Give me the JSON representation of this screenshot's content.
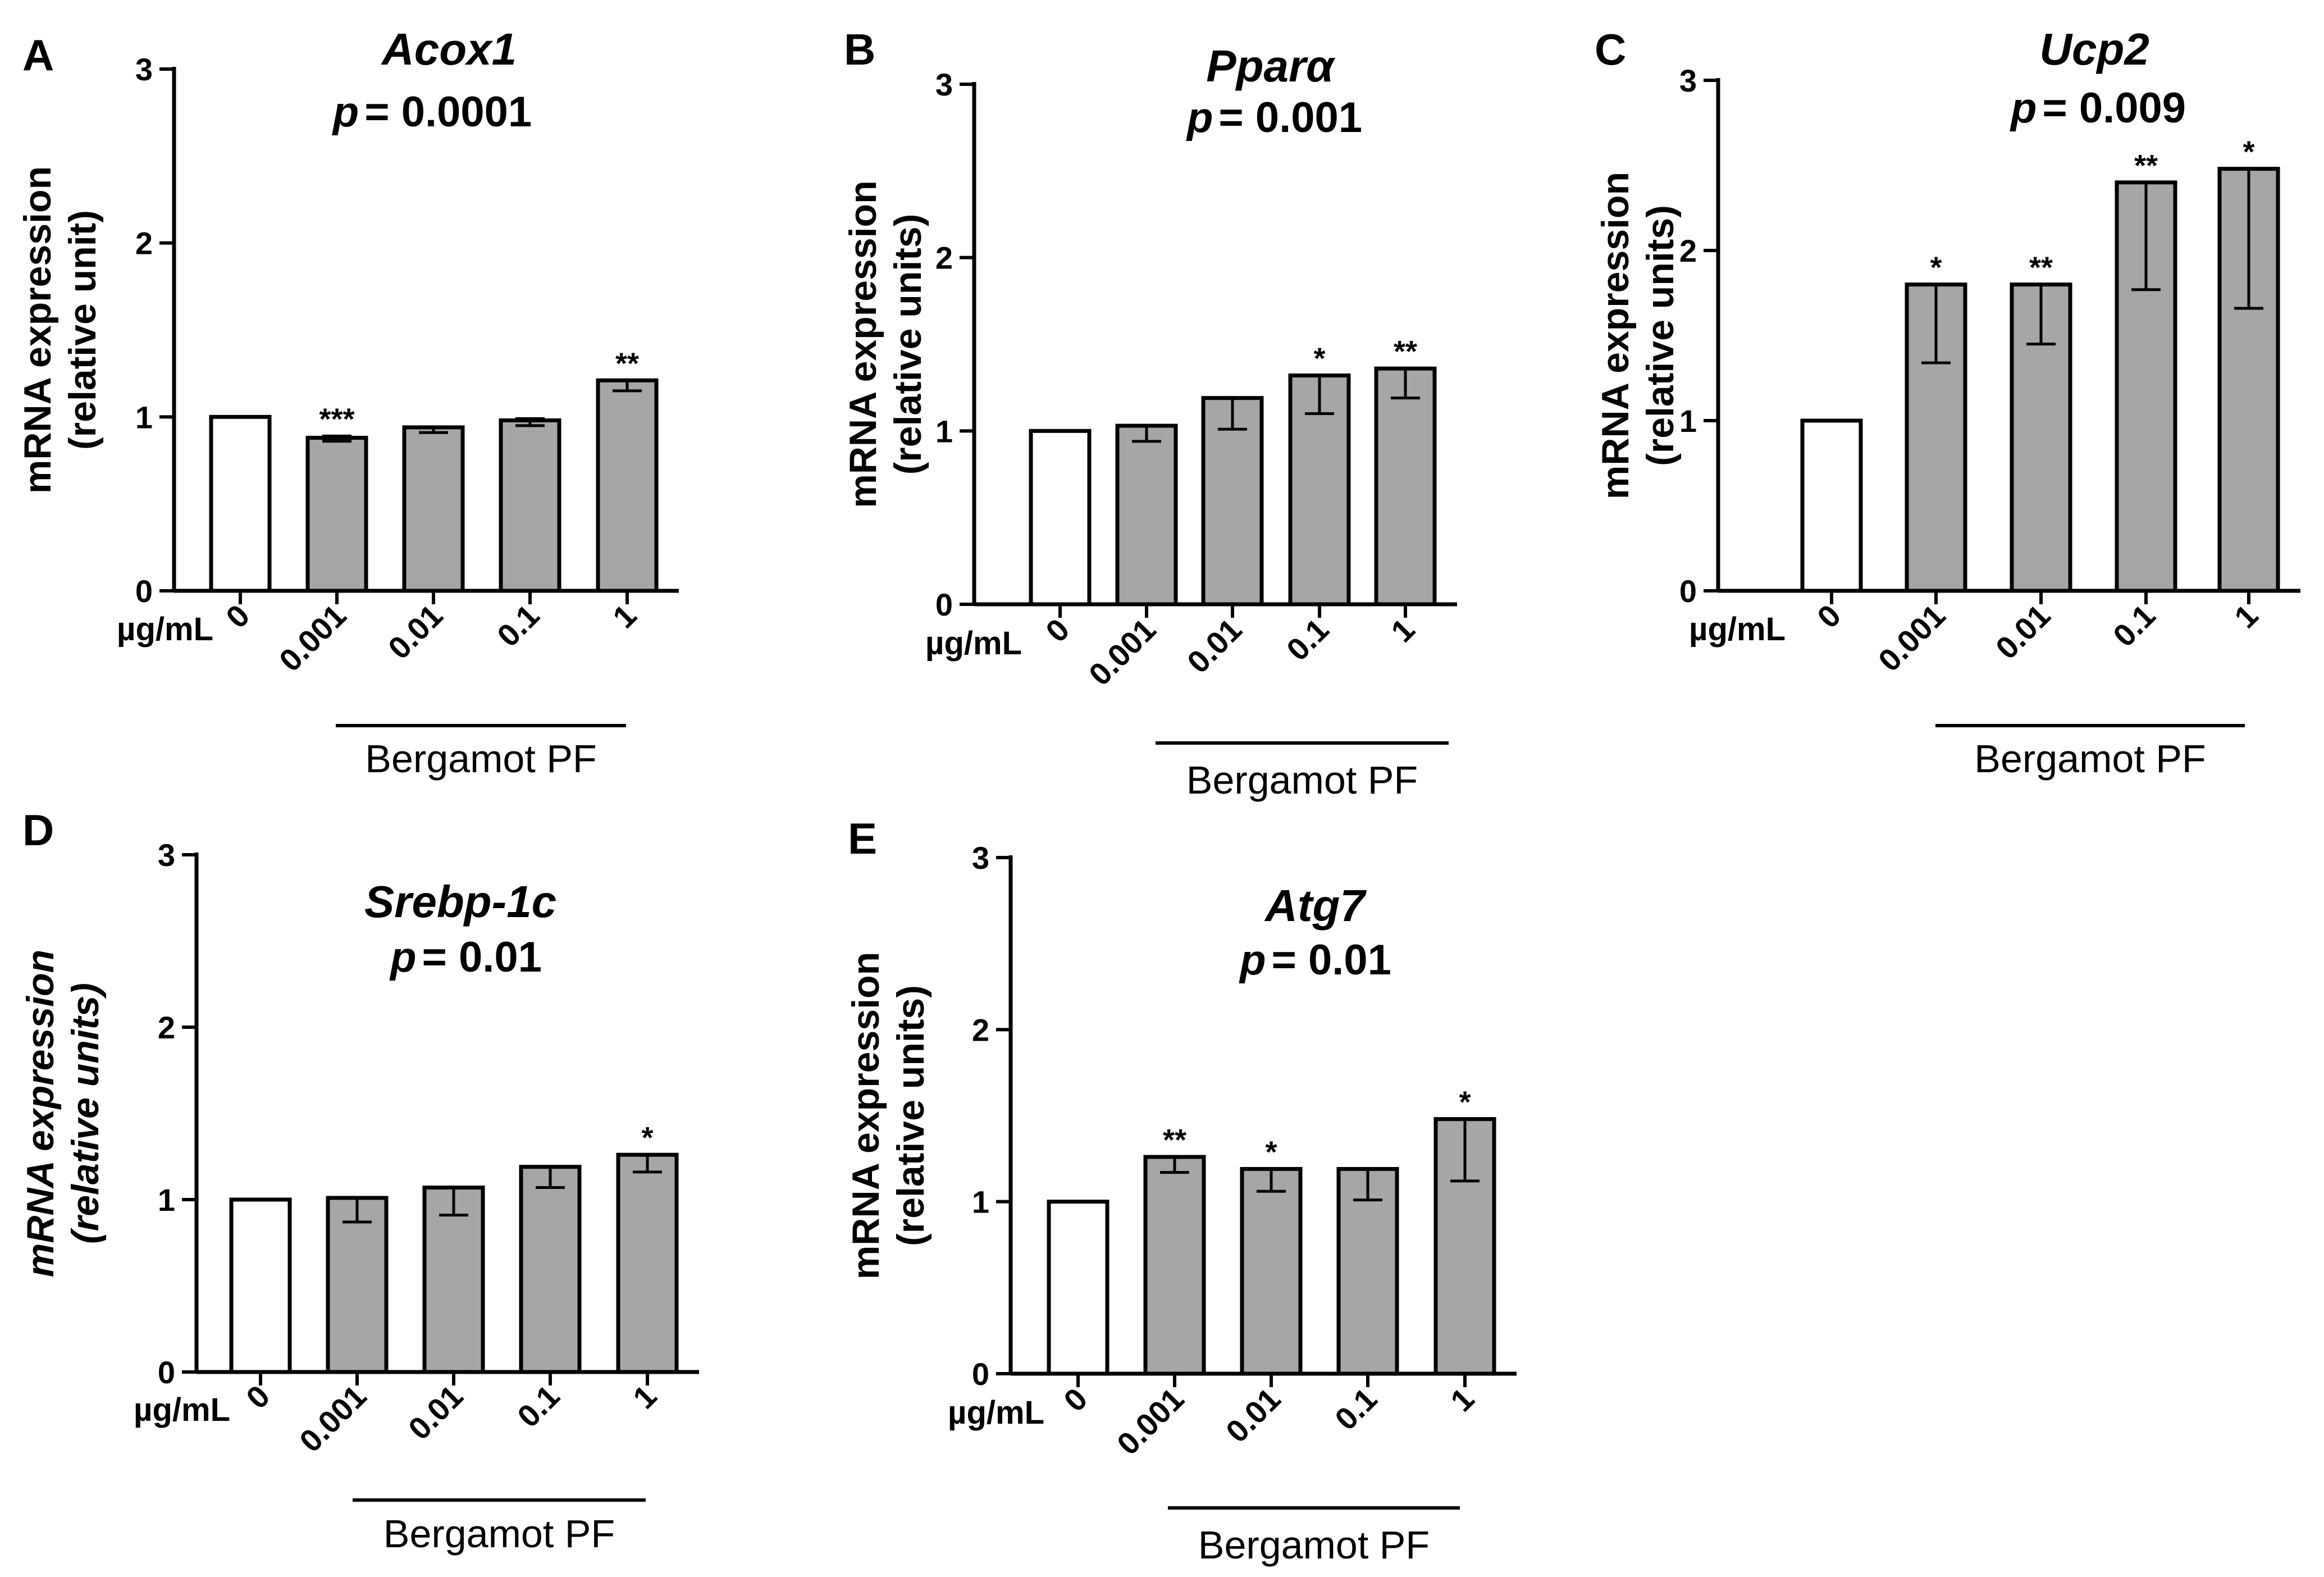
{
  "colors": {
    "bar_treated": "#a6a6a6",
    "bar_control": "#ffffff",
    "stroke": "#000000"
  },
  "chart_data": [
    {
      "panel": "A",
      "type": "bar",
      "title": "Acox1",
      "p_prefix": "p",
      "p_value": "= 0.0001",
      "ylabel": [
        "mRNA expression",
        "(relative unit)"
      ],
      "ylabel_italic": false,
      "unit_label": "µg/mL",
      "categories": [
        "0",
        "0.001",
        "0.01",
        "0.1",
        "1"
      ],
      "values": [
        1.0,
        0.88,
        0.94,
        0.98,
        1.21
      ],
      "error_low": [
        1.0,
        0.86,
        0.91,
        0.95,
        1.15
      ],
      "error_high": [
        1.0,
        0.89,
        0.94,
        0.99,
        1.21
      ],
      "significance": [
        "",
        "***",
        "",
        "",
        "**"
      ],
      "group_label": "Bergamot PF",
      "ylim": [
        0,
        3
      ],
      "yticks": [
        0,
        1,
        2,
        3
      ]
    },
    {
      "panel": "B",
      "type": "bar",
      "title": "Pparα",
      "p_prefix": "p",
      "p_value": "= 0.001",
      "ylabel": [
        "mRNA expression",
        "(relative units)"
      ],
      "ylabel_italic": false,
      "unit_label": "µg/mL",
      "categories": [
        "0",
        "0.001",
        "0.01",
        "0.1",
        "1"
      ],
      "values": [
        1.0,
        1.03,
        1.19,
        1.32,
        1.36
      ],
      "error_low": [
        1.0,
        0.94,
        1.01,
        1.1,
        1.19
      ],
      "error_high": [
        1.0,
        1.03,
        1.19,
        1.32,
        1.36
      ],
      "significance": [
        "",
        "",
        "",
        "*",
        "**"
      ],
      "group_label": "Bergamot PF",
      "ylim": [
        0,
        3
      ],
      "yticks": [
        0,
        1,
        2,
        3
      ]
    },
    {
      "panel": "C",
      "type": "bar",
      "title": "Ucp2",
      "p_prefix": "p",
      "p_value": "= 0.009",
      "ylabel": [
        "mRNA expression",
        "(relative units)"
      ],
      "ylabel_italic": false,
      "unit_label": "µg/mL",
      "categories": [
        "0",
        "0.001",
        "0.01",
        "0.1",
        "1"
      ],
      "values": [
        1.0,
        1.8,
        1.8,
        2.4,
        2.48
      ],
      "error_low": [
        1.0,
        1.34,
        1.45,
        1.77,
        1.66
      ],
      "error_high": [
        1.0,
        1.8,
        1.8,
        2.4,
        2.48
      ],
      "significance": [
        "",
        "*",
        "**",
        "**",
        "*"
      ],
      "group_label": "Bergamot PF",
      "ylim": [
        0,
        3
      ],
      "yticks": [
        0,
        1,
        2,
        3
      ]
    },
    {
      "panel": "D",
      "type": "bar",
      "title": "Srebp-1c",
      "p_prefix": "p",
      "p_value": "= 0.01",
      "ylabel": [
        "mRNA expression",
        "(relative units)"
      ],
      "ylabel_italic": true,
      "unit_label": "µg/mL",
      "categories": [
        "0",
        "0.001",
        "0.01",
        "0.1",
        "1"
      ],
      "values": [
        1.0,
        1.01,
        1.07,
        1.19,
        1.26
      ],
      "error_low": [
        1.0,
        0.87,
        0.91,
        1.07,
        1.16
      ],
      "error_high": [
        1.0,
        1.01,
        1.07,
        1.19,
        1.26
      ],
      "significance": [
        "",
        "",
        "",
        "",
        "*"
      ],
      "group_label": "Bergamot PF",
      "ylim": [
        0,
        3
      ],
      "yticks": [
        0,
        1,
        2,
        3
      ]
    },
    {
      "panel": "E",
      "type": "bar",
      "title": "Atg7",
      "p_prefix": "p",
      "p_value": "= 0.01",
      "ylabel": [
        "mRNA expression",
        "(relative units)"
      ],
      "ylabel_italic": false,
      "unit_label": "µg/mL",
      "categories": [
        "0",
        "0.001",
        "0.01",
        "0.1",
        "1"
      ],
      "values": [
        1.0,
        1.26,
        1.19,
        1.19,
        1.48
      ],
      "error_low": [
        1.0,
        1.17,
        1.06,
        1.01,
        1.12
      ],
      "error_high": [
        1.0,
        1.26,
        1.19,
        1.19,
        1.48
      ],
      "significance": [
        "",
        "**",
        "*",
        "",
        "*"
      ],
      "group_label": "Bergamot PF",
      "ylim": [
        0,
        3
      ],
      "yticks": [
        0,
        1,
        2,
        3
      ]
    }
  ]
}
